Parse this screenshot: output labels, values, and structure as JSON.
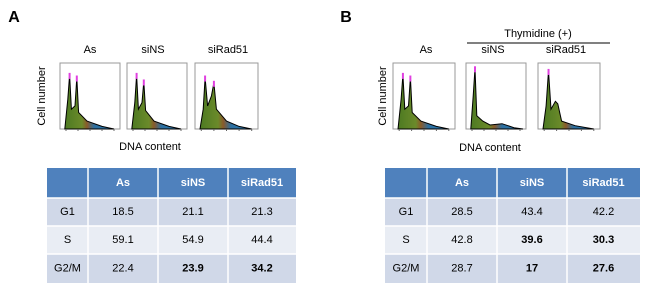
{
  "panels": [
    {
      "label": "A",
      "columns": [
        "As",
        "siNS",
        "siRad51"
      ],
      "y_axis_label": "Cell number",
      "x_axis_label": "DNA content",
      "table": {
        "header": [
          "As",
          "siNS",
          "siRad51"
        ],
        "rows": [
          {
            "phase": "G1",
            "values": [
              18.5,
              21.1,
              21.3
            ]
          },
          {
            "phase": "S",
            "values": [
              59.1,
              54.9,
              44.4
            ]
          },
          {
            "phase": "G2/M",
            "values": [
              22.4,
              23.9,
              34.2
            ]
          }
        ],
        "highlight_color": "#e8231f",
        "highlight": [
          [
            false,
            false,
            false
          ],
          [
            false,
            true,
            true
          ],
          [
            false,
            true,
            true
          ]
        ],
        "bold": [
          [
            false,
            false,
            false
          ],
          [
            false,
            false,
            false
          ],
          [
            false,
            true,
            true
          ]
        ]
      }
    },
    {
      "label": "B",
      "condition": "Thymidine (+)",
      "columns": [
        "As",
        "siNS",
        "siRad51"
      ],
      "y_axis_label": "Cell number",
      "x_axis_label": "DNA content",
      "table": {
        "header": [
          "As",
          "siNS",
          "siRad51"
        ],
        "rows": [
          {
            "phase": "G1",
            "values": [
              28.5,
              43.4,
              42.2
            ]
          },
          {
            "phase": "S",
            "values": [
              42.8,
              39.6,
              30.3
            ]
          },
          {
            "phase": "G2/M",
            "values": [
              28.7,
              17,
              27.6
            ]
          }
        ],
        "highlight_color": "#e8231f",
        "highlight": [
          [
            false,
            false,
            false
          ],
          [
            false,
            true,
            true
          ],
          [
            false,
            true,
            true
          ]
        ],
        "bold": [
          [
            false,
            false,
            false
          ],
          [
            false,
            true,
            true
          ],
          [
            false,
            true,
            true
          ]
        ]
      }
    }
  ]
}
